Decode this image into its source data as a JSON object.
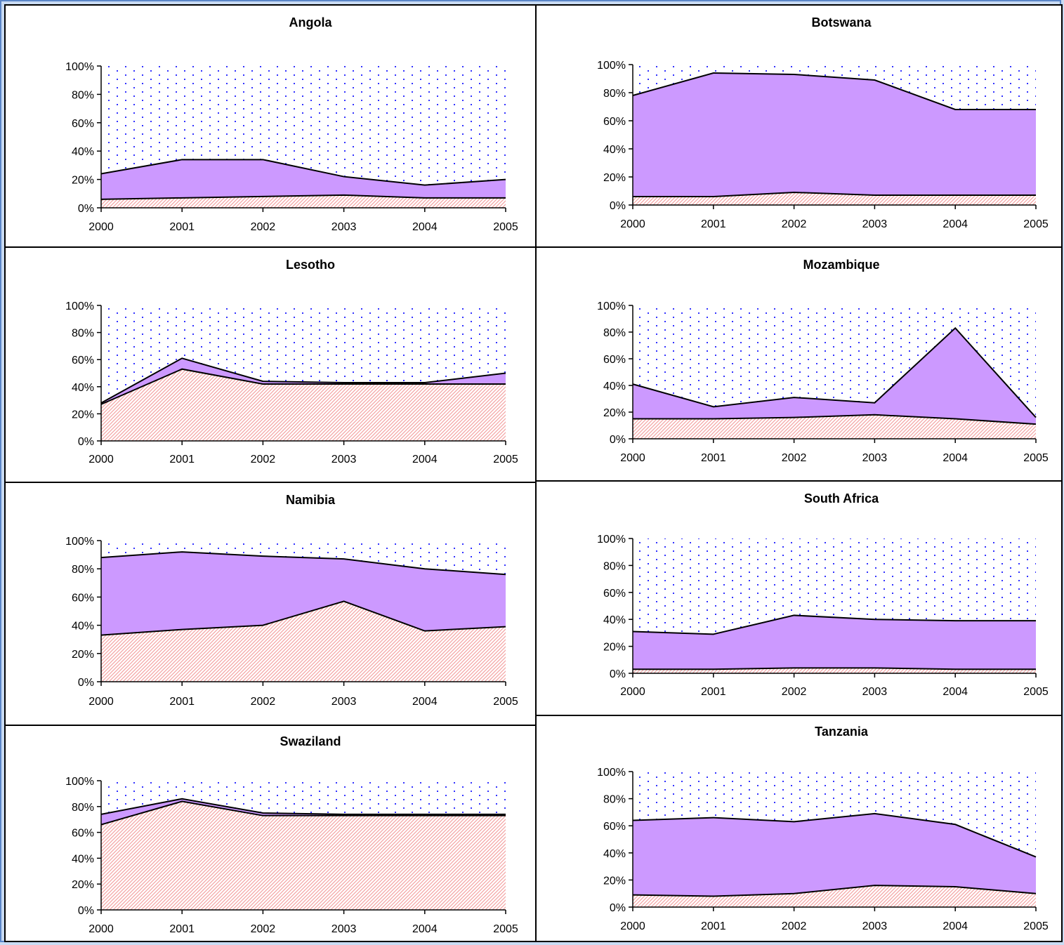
{
  "chart_data": [
    {
      "type": "area",
      "title": "Angola",
      "x": [
        "2000",
        "2001",
        "2002",
        "2003",
        "2004",
        "2005"
      ],
      "y_ticks": [
        "0%",
        "20%",
        "40%",
        "60%",
        "80%",
        "100%"
      ],
      "ylim": [
        0,
        100
      ],
      "bottom": [
        6,
        7,
        8,
        9,
        7,
        7
      ],
      "top": [
        24,
        34,
        34,
        22,
        16,
        20
      ]
    },
    {
      "type": "area",
      "title": "Botswana",
      "x": [
        "2000",
        "2001",
        "2002",
        "2003",
        "2004",
        "2005"
      ],
      "y_ticks": [
        "0%",
        "20%",
        "40%",
        "60%",
        "80%",
        "100%"
      ],
      "ylim": [
        0,
        100
      ],
      "bottom": [
        6,
        6,
        9,
        7,
        7,
        7
      ],
      "top": [
        78,
        94,
        93,
        89,
        68,
        68
      ]
    },
    {
      "type": "area",
      "title": "Lesotho",
      "x": [
        "2000",
        "2001",
        "2002",
        "2003",
        "2004",
        "2005"
      ],
      "y_ticks": [
        "0%",
        "20%",
        "40%",
        "60%",
        "80%",
        "100%"
      ],
      "ylim": [
        0,
        100
      ],
      "bottom": [
        27,
        53,
        42,
        42,
        42,
        42
      ],
      "top": [
        28,
        61,
        44,
        43,
        43,
        50
      ]
    },
    {
      "type": "area",
      "title": "Mozambique",
      "x": [
        "2000",
        "2001",
        "2002",
        "2003",
        "2004",
        "2005"
      ],
      "y_ticks": [
        "0%",
        "20%",
        "40%",
        "60%",
        "80%",
        "100%"
      ],
      "ylim": [
        0,
        100
      ],
      "bottom": [
        15,
        15,
        16,
        18,
        15,
        11
      ],
      "top": [
        41,
        24,
        31,
        27,
        83,
        16
      ]
    },
    {
      "type": "area",
      "title": "Namibia",
      "x": [
        "2000",
        "2001",
        "2002",
        "2003",
        "2004",
        "2005"
      ],
      "y_ticks": [
        "0%",
        "20%",
        "40%",
        "60%",
        "80%",
        "100%"
      ],
      "ylim": [
        0,
        100
      ],
      "bottom": [
        33,
        37,
        40,
        57,
        36,
        39
      ],
      "top": [
        88,
        92,
        89,
        87,
        80,
        76
      ]
    },
    {
      "type": "area",
      "title": "South Africa",
      "x": [
        "2000",
        "2001",
        "2002",
        "2003",
        "2004",
        "2005"
      ],
      "y_ticks": [
        "0%",
        "20%",
        "40%",
        "60%",
        "80%",
        "100%"
      ],
      "ylim": [
        0,
        100
      ],
      "bottom": [
        3,
        3,
        4,
        4,
        3,
        3
      ],
      "top": [
        31,
        29,
        43,
        40,
        39,
        39
      ]
    },
    {
      "type": "area",
      "title": "Swaziland",
      "x": [
        "2000",
        "2001",
        "2002",
        "2003",
        "2004",
        "2005"
      ],
      "y_ticks": [
        "0%",
        "20%",
        "40%",
        "60%",
        "80%",
        "100%"
      ],
      "ylim": [
        0,
        100
      ],
      "bottom": [
        66,
        84,
        73,
        73,
        73,
        73
      ],
      "top": [
        74,
        86,
        75,
        74,
        74,
        74
      ]
    },
    {
      "type": "area",
      "title": "Tanzania",
      "x": [
        "2000",
        "2001",
        "2002",
        "2003",
        "2004",
        "2005"
      ],
      "y_ticks": [
        "0%",
        "20%",
        "40%",
        "60%",
        "80%",
        "100%"
      ],
      "ylim": [
        0,
        100
      ],
      "bottom": [
        9,
        8,
        10,
        16,
        15,
        10
      ],
      "top": [
        64,
        66,
        63,
        69,
        61,
        37
      ]
    }
  ],
  "colors": {
    "bottom_hatch": "#f4a3a3",
    "middle_fill": "#cc99ff",
    "top_dots": "#3333ff",
    "background": "#c9dbf3",
    "frame": "#5b86c8"
  }
}
